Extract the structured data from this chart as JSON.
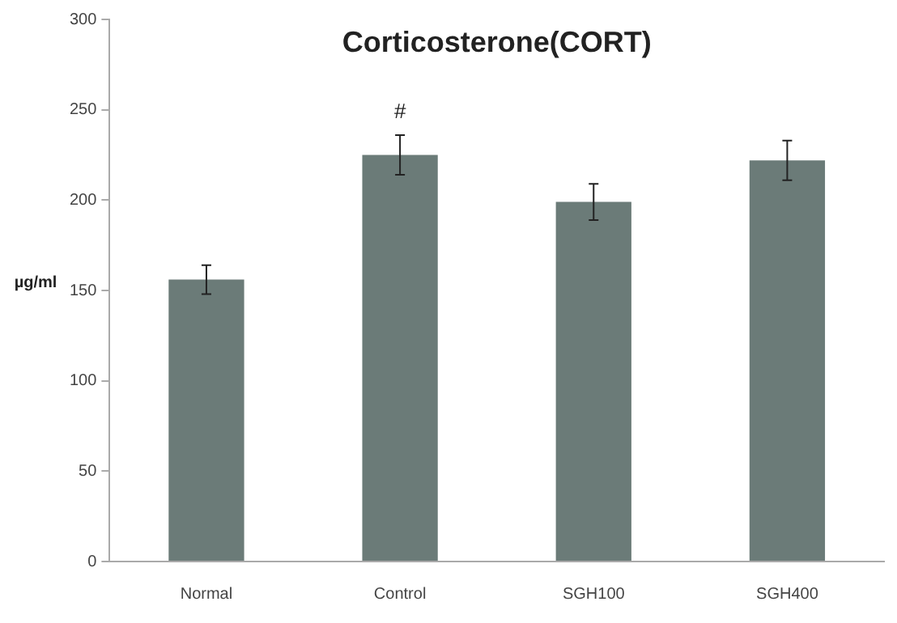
{
  "chart_data": {
    "type": "bar",
    "title": "Corticosterone(CORT)",
    "ylabel": "µg/ml",
    "categories": [
      "Normal",
      "Control",
      "SGH100",
      "SGH400"
    ],
    "values": [
      156,
      225,
      199,
      222
    ],
    "errors": [
      8,
      11,
      10,
      11
    ],
    "color": "#6b7b78",
    "ylim": [
      0,
      300
    ],
    "yticks": [
      0,
      50,
      100,
      150,
      200,
      250,
      300
    ],
    "grid": false,
    "legend": false,
    "annotations": [
      {
        "text": "#",
        "x": "Control",
        "y": 225
      }
    ]
  }
}
